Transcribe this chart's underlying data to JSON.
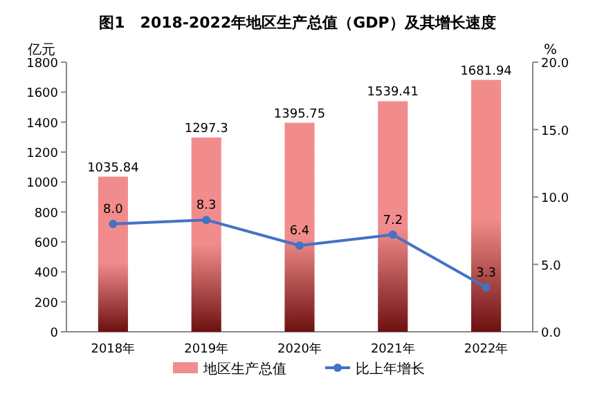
{
  "chart_data": {
    "type": "bar",
    "title": "图1　2018-2022年地区生产总值（GDP）及其增长速度",
    "ylabel": "亿元",
    "y2label": "%",
    "categories": [
      "2018年",
      "2019年",
      "2020年",
      "2021年",
      "2022年"
    ],
    "series": [
      {
        "name": "地区生产总值",
        "color": "#f28c8c",
        "values": [
          1035.84,
          1297.3,
          1395.75,
          1539.41,
          1681.94
        ],
        "value_labels": [
          "1035.84",
          "1297.3",
          "1395.75",
          "1539.41",
          "1681.94"
        ]
      },
      {
        "name": "比上年增长",
        "type": "line",
        "axis": "y2",
        "color": "#4472c4",
        "values": [
          8.0,
          8.3,
          6.4,
          7.2,
          3.3
        ],
        "value_labels": [
          "8.0",
          "8.3",
          "6.4",
          "7.2",
          "3.3"
        ]
      }
    ],
    "ylim": [
      0,
      1800
    ],
    "yticks": [
      0,
      200,
      400,
      600,
      800,
      1000,
      1200,
      1400,
      1600,
      1800
    ],
    "y2lim": [
      0,
      20
    ],
    "y2ticks": [
      {
        "value": 0,
        "label": "0.0"
      },
      {
        "value": 5,
        "label": "5.0"
      },
      {
        "value": 10,
        "label": "10.0"
      },
      {
        "value": 15,
        "label": "15.0"
      },
      {
        "value": 20,
        "label": "20.0"
      }
    ],
    "legend": "bottom",
    "marker": "circle",
    "line_style": "solid",
    "grid": false
  }
}
